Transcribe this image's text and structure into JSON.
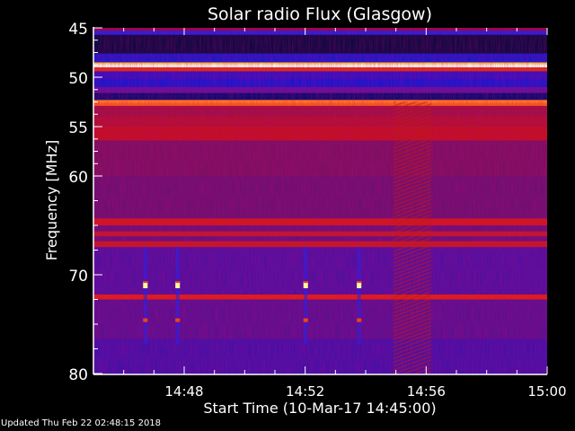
{
  "chart_data": {
    "type": "heatmap",
    "title": "Solar radio Flux (Glasgow)",
    "xlabel": "Start Time (10-Mar-17 14:45:00)",
    "ylabel": "Frequency [MHz]",
    "xlim": [
      "14:45",
      "15:00"
    ],
    "ylim": [
      45,
      80
    ],
    "y_inverted": true,
    "x_ticks": [
      "14:48",
      "14:52",
      "14:56",
      "15:00"
    ],
    "y_ticks": [
      45,
      50,
      55,
      60,
      70,
      80
    ],
    "colormap": "blue-purple-red-yellow-white",
    "bands": [
      {
        "f0": 45.0,
        "f1": 45.3,
        "color": "#8a0a4a"
      },
      {
        "f0": 45.3,
        "f1": 45.7,
        "color": "#2020e0"
      },
      {
        "f0": 45.7,
        "f1": 47.6,
        "color": "#080840"
      },
      {
        "f0": 47.6,
        "f1": 48.5,
        "color": "#1818c8"
      },
      {
        "f0": 48.5,
        "f1": 48.7,
        "color": "#ffd040"
      },
      {
        "f0": 48.7,
        "f1": 49.0,
        "color": "#fffff0"
      },
      {
        "f0": 49.0,
        "f1": 49.4,
        "color": "#e03010"
      },
      {
        "f0": 49.4,
        "f1": 50.2,
        "color": "#3010c0"
      },
      {
        "f0": 50.2,
        "f1": 51.0,
        "color": "#1515d0"
      },
      {
        "f0": 51.0,
        "f1": 51.6,
        "color": "#60109a"
      },
      {
        "f0": 51.6,
        "f1": 52.3,
        "color": "#0a0a70"
      },
      {
        "f0": 52.3,
        "f1": 52.6,
        "color": "#ff8020"
      },
      {
        "f0": 52.6,
        "f1": 52.9,
        "color": "#ff6010"
      },
      {
        "f0": 52.9,
        "f1": 54.0,
        "color": "#a01040"
      },
      {
        "f0": 54.0,
        "f1": 55.0,
        "color": "#b01030"
      },
      {
        "f0": 55.0,
        "f1": 56.4,
        "color": "#c01020"
      },
      {
        "f0": 56.4,
        "f1": 60.0,
        "color": "#781060"
      },
      {
        "f0": 60.0,
        "f1": 64.3,
        "color": "#6a1070"
      },
      {
        "f0": 64.3,
        "f1": 65.0,
        "color": "#d01818"
      },
      {
        "f0": 65.0,
        "f1": 65.6,
        "color": "#681078"
      },
      {
        "f0": 65.6,
        "f1": 66.1,
        "color": "#c01828"
      },
      {
        "f0": 66.1,
        "f1": 66.6,
        "color": "#681078"
      },
      {
        "f0": 66.6,
        "f1": 67.2,
        "color": "#c41820"
      },
      {
        "f0": 67.2,
        "f1": 72.0,
        "color": "#4c10a0"
      },
      {
        "f0": 72.0,
        "f1": 72.5,
        "color": "#e02010"
      },
      {
        "f0": 72.5,
        "f1": 76.5,
        "color": "#561090"
      },
      {
        "f0": 76.5,
        "f1": 80.0,
        "color": "#4010a8"
      }
    ],
    "bursts": [
      {
        "time": "14:46:43",
        "freq": 71.0,
        "color": "#ffffa0"
      },
      {
        "time": "14:47:47",
        "freq": 71.0,
        "color": "#ffffa0"
      },
      {
        "time": "14:52:01",
        "freq": 71.0,
        "color": "#ffffa0"
      },
      {
        "time": "14:53:47",
        "freq": 71.0,
        "color": "#ffffa0"
      },
      {
        "time": "14:46:43",
        "freq": 74.6,
        "color": "#ff4010"
      },
      {
        "time": "14:47:47",
        "freq": 74.6,
        "color": "#ff4010"
      },
      {
        "time": "14:52:01",
        "freq": 74.6,
        "color": "#ff4010"
      },
      {
        "time": "14:53:47",
        "freq": 74.6,
        "color": "#ff4010"
      }
    ],
    "interference_region": {
      "t0": "14:54:55",
      "t1": "14:56:10",
      "f0": 52.5,
      "f1": 80
    }
  },
  "footer": {
    "updated": "Updated Thu Feb 22 02:48:15 2018"
  }
}
